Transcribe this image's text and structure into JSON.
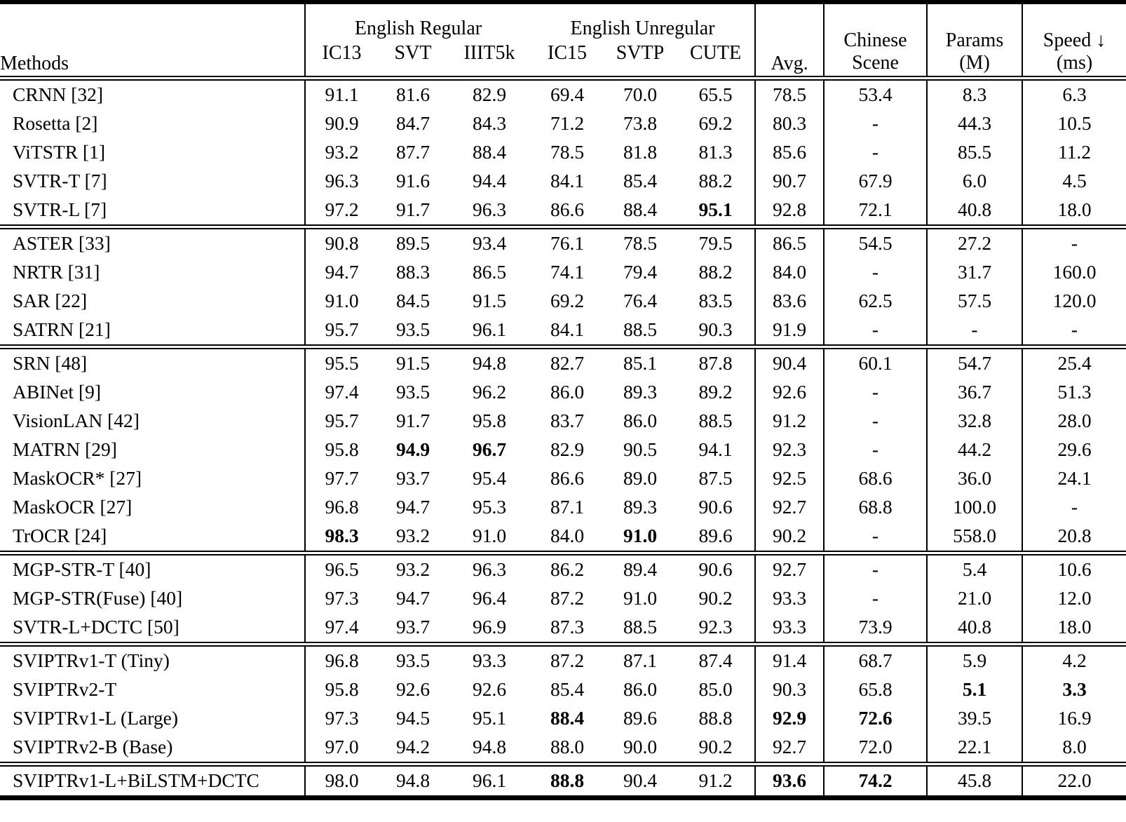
{
  "colors": {
    "text": "#000000",
    "background": "#ffffff",
    "rule": "#000000"
  },
  "table": {
    "header": {
      "methods": "Methods",
      "groups": [
        {
          "label": "English Regular",
          "cols": [
            "IC13",
            "SVT",
            "IIIT5k"
          ]
        },
        {
          "label": "English Unregular",
          "cols": [
            "IC15",
            "SVTP",
            "CUTE"
          ]
        }
      ],
      "avg": "Avg.",
      "chinese": [
        "Chinese",
        "Scene"
      ],
      "params": [
        "Params",
        "(M)"
      ],
      "speed": [
        "Speed ↓",
        "(ms)"
      ]
    },
    "sections": [
      {
        "rows": [
          {
            "method": "CRNN [32]",
            "values": [
              "91.1",
              "81.6",
              "82.9",
              "69.4",
              "70.0",
              "65.5",
              "78.5",
              "53.4",
              "8.3",
              "6.3"
            ],
            "bold": []
          },
          {
            "method": "Rosetta [2]",
            "values": [
              "90.9",
              "84.7",
              "84.3",
              "71.2",
              "73.8",
              "69.2",
              "80.3",
              "-",
              "44.3",
              "10.5"
            ],
            "bold": []
          },
          {
            "method": "ViTSTR [1]",
            "values": [
              "93.2",
              "87.7",
              "88.4",
              "78.5",
              "81.8",
              "81.3",
              "85.6",
              "-",
              "85.5",
              "11.2"
            ],
            "bold": []
          },
          {
            "method": "SVTR-T [7]",
            "values": [
              "96.3",
              "91.6",
              "94.4",
              "84.1",
              "85.4",
              "88.2",
              "90.7",
              "67.9",
              "6.0",
              "4.5"
            ],
            "bold": []
          },
          {
            "method": "SVTR-L [7]",
            "values": [
              "97.2",
              "91.7",
              "96.3",
              "86.6",
              "88.4",
              "95.1",
              "92.8",
              "72.1",
              "40.8",
              "18.0"
            ],
            "bold": [
              5
            ]
          }
        ]
      },
      {
        "rows": [
          {
            "method": "ASTER [33]",
            "values": [
              "90.8",
              "89.5",
              "93.4",
              "76.1",
              "78.5",
              "79.5",
              "86.5",
              "54.5",
              "27.2",
              "-"
            ],
            "bold": []
          },
          {
            "method": "NRTR [31]",
            "values": [
              "94.7",
              "88.3",
              "86.5",
              "74.1",
              "79.4",
              "88.2",
              "84.0",
              "-",
              "31.7",
              "160.0"
            ],
            "bold": []
          },
          {
            "method": "SAR [22]",
            "values": [
              "91.0",
              "84.5",
              "91.5",
              "69.2",
              "76.4",
              "83.5",
              "83.6",
              "62.5",
              "57.5",
              "120.0"
            ],
            "bold": []
          },
          {
            "method": "SATRN [21]",
            "values": [
              "95.7",
              "93.5",
              "96.1",
              "84.1",
              "88.5",
              "90.3",
              "91.9",
              "-",
              "-",
              "-"
            ],
            "bold": []
          }
        ]
      },
      {
        "rows": [
          {
            "method": "SRN [48]",
            "values": [
              "95.5",
              "91.5",
              "94.8",
              "82.7",
              "85.1",
              "87.8",
              "90.4",
              "60.1",
              "54.7",
              "25.4"
            ],
            "bold": []
          },
          {
            "method": "ABINet [9]",
            "values": [
              "97.4",
              "93.5",
              "96.2",
              "86.0",
              "89.3",
              "89.2",
              "92.6",
              "-",
              "36.7",
              "51.3"
            ],
            "bold": []
          },
          {
            "method": "VisionLAN [42]",
            "values": [
              "95.7",
              "91.7",
              "95.8",
              "83.7",
              "86.0",
              "88.5",
              "91.2",
              "-",
              "32.8",
              "28.0"
            ],
            "bold": []
          },
          {
            "method": "MATRN [29]",
            "values": [
              "95.8",
              "94.9",
              "96.7",
              "82.9",
              "90.5",
              "94.1",
              "92.3",
              "-",
              "44.2",
              "29.6"
            ],
            "bold": [
              1,
              2
            ]
          },
          {
            "method": "MaskOCR* [27]",
            "values": [
              "97.7",
              "93.7",
              "95.4",
              "86.6",
              "89.0",
              "87.5",
              "92.5",
              "68.6",
              "36.0",
              "24.1"
            ],
            "bold": []
          },
          {
            "method": "MaskOCR [27]",
            "values": [
              "96.8",
              "94.7",
              "95.3",
              "87.1",
              "89.3",
              "90.6",
              "92.7",
              "68.8",
              "100.0",
              "-"
            ],
            "bold": []
          },
          {
            "method": "TrOCR [24]",
            "values": [
              "98.3",
              "93.2",
              "91.0",
              "84.0",
              "91.0",
              "89.6",
              "90.2",
              "-",
              "558.0",
              "20.8"
            ],
            "bold": [
              0,
              4
            ]
          }
        ]
      },
      {
        "rows": [
          {
            "method": "MGP-STR-T [40]",
            "values": [
              "96.5",
              "93.2",
              "96.3",
              "86.2",
              "89.4",
              "90.6",
              "92.7",
              "-",
              "5.4",
              "10.6"
            ],
            "bold": []
          },
          {
            "method": "MGP-STR(Fuse) [40]",
            "values": [
              "97.3",
              "94.7",
              "96.4",
              "87.2",
              "91.0",
              "90.2",
              "93.3",
              "-",
              "21.0",
              "12.0"
            ],
            "bold": []
          },
          {
            "method": "SVTR-L+DCTC [50]",
            "values": [
              "97.4",
              "93.7",
              "96.9",
              "87.3",
              "88.5",
              "92.3",
              "93.3",
              "73.9",
              "40.8",
              "18.0"
            ],
            "bold": []
          }
        ]
      },
      {
        "rows": [
          {
            "method": "SVIPTRv1-T (Tiny)",
            "values": [
              "96.8",
              "93.5",
              "93.3",
              "87.2",
              "87.1",
              "87.4",
              "91.4",
              "68.7",
              "5.9",
              "4.2"
            ],
            "bold": []
          },
          {
            "method": "SVIPTRv2-T",
            "values": [
              "95.8",
              "92.6",
              "92.6",
              "85.4",
              "86.0",
              "85.0",
              "90.3",
              "65.8",
              "5.1",
              "3.3"
            ],
            "bold": [
              8,
              9
            ]
          },
          {
            "method": "SVIPTRv1-L (Large)",
            "values": [
              "97.3",
              "94.5",
              "95.1",
              "88.4",
              "89.6",
              "88.8",
              "92.9",
              "72.6",
              "39.5",
              "16.9"
            ],
            "bold": [
              3,
              6,
              7
            ]
          },
          {
            "method": "SVIPTRv2-B (Base)",
            "values": [
              "97.0",
              "94.2",
              "94.8",
              "88.0",
              "90.0",
              "90.2",
              "92.7",
              "72.0",
              "22.1",
              "8.0"
            ],
            "bold": []
          }
        ]
      },
      {
        "rows": [
          {
            "method": "SVIPTRv1-L+BiLSTM+DCTC",
            "values": [
              "98.0",
              "94.8",
              "96.1",
              "88.8",
              "90.4",
              "91.2",
              "93.6",
              "74.2",
              "45.8",
              "22.0"
            ],
            "bold": [
              3,
              6,
              7
            ]
          }
        ]
      }
    ]
  }
}
